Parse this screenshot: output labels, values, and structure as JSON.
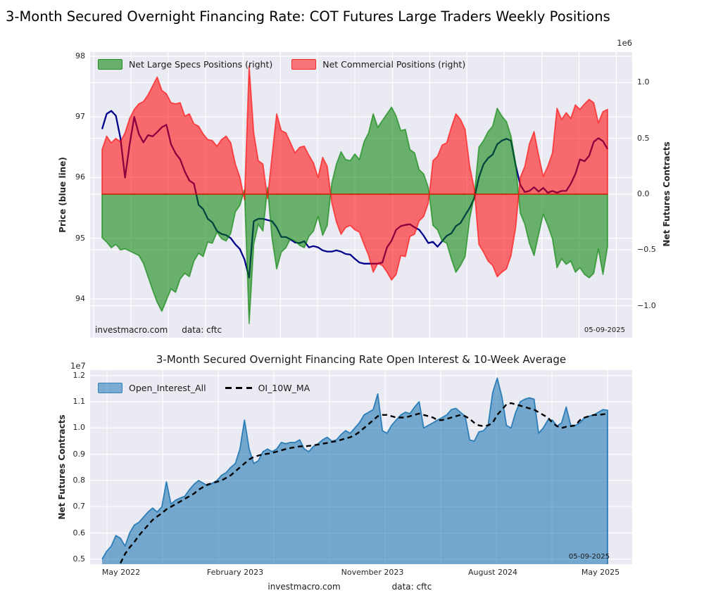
{
  "figure": {
    "title": "3-Month Secured Overnight Financing Rate: COT Futures Large Traders Weekly Positions",
    "background": "#ffffff",
    "plot_background": "#eaeaf2",
    "grid_color": "#ffffff"
  },
  "top_chart": {
    "legend": {
      "specs": "Net Large Specs Positions (right)",
      "commercials": "Net Commercial Positions (right)"
    },
    "ylabel_left": "Price (blue line)",
    "ylabel_right": "Net Futures Contracts",
    "offset_text": "1e6",
    "watermark": "investmacro.com",
    "source": "data: cftc",
    "date": "05-09-2025"
  },
  "bottom_chart": {
    "title": "3-Month Secured Overnight Financing Rate Open Interest & 10-Week Average",
    "legend": {
      "oi": "Open_Interest_All",
      "ma": "OI_10W_MA"
    },
    "ylabel": "Net Futures Contracts",
    "offset_text": "1e7",
    "date": "05-09-2025",
    "footer_watermark": "investmacro.com",
    "footer_source": "data: cftc"
  },
  "chart_data": [
    {
      "type": "line+area",
      "title": "3-Month Secured Overnight Financing Rate: COT Futures Large Traders Weekly Positions",
      "x_unit": "weeks from May 2022 to May 2025",
      "left_axis": {
        "label": "Price (blue line)",
        "range": [
          93.36,
          98.07
        ],
        "ticks": [
          98,
          97,
          96,
          95,
          94
        ],
        "tick_labels": [
          "98",
          "97",
          "96",
          "95",
          "94"
        ]
      },
      "right_axis": {
        "label": "Net Futures Contracts",
        "multiplier": "1e6",
        "range": [
          -1.287,
          1.274
        ],
        "ticks": [
          1.0,
          0.5,
          0.0,
          -0.5,
          -1.0
        ],
        "tick_labels": [
          "1.0",
          "0.5",
          "0.0",
          "−0.5",
          "−1.0"
        ]
      },
      "xgrid_pos": [
        -1.8,
        6.3,
        14.4,
        22.5,
        30.7,
        38.8,
        46.9,
        55.0,
        63.2,
        71.3,
        79.4,
        87.5,
        95.7,
        103.8,
        111.9
      ],
      "series": [
        {
          "name": "Price (blue line)",
          "style": "line",
          "axis": "left",
          "color": "#00008b",
          "values": [
            96.8,
            97.05,
            97.1,
            97.02,
            96.65,
            96.0,
            96.55,
            97.0,
            96.72,
            96.58,
            96.7,
            96.68,
            96.75,
            96.83,
            96.87,
            96.55,
            96.4,
            96.3,
            96.1,
            95.95,
            95.9,
            95.55,
            95.48,
            95.32,
            95.26,
            95.12,
            95.07,
            95.05,
            95.0,
            94.9,
            94.82,
            94.65,
            94.35,
            95.28,
            95.32,
            95.32,
            95.3,
            95.28,
            95.18,
            95.02,
            95.02,
            94.98,
            94.93,
            94.92,
            94.95,
            94.85,
            94.87,
            94.85,
            94.8,
            94.78,
            94.78,
            94.8,
            94.78,
            94.74,
            94.73,
            94.66,
            94.6,
            94.58,
            94.58,
            94.58,
            94.58,
            94.6,
            94.85,
            94.96,
            95.14,
            95.2,
            95.22,
            95.23,
            95.18,
            95.14,
            95.04,
            94.92,
            94.94,
            94.86,
            94.95,
            95.04,
            95.08,
            95.2,
            95.25,
            95.38,
            95.5,
            95.66,
            96.0,
            96.22,
            96.32,
            96.38,
            96.55,
            96.61,
            96.64,
            96.61,
            96.2,
            95.88,
            95.76,
            95.78,
            95.84,
            95.77,
            95.83,
            95.75,
            95.78,
            95.75,
            95.78,
            95.78,
            95.9,
            96.06,
            96.3,
            96.27,
            96.36,
            96.59,
            96.65,
            96.6,
            96.47
          ]
        },
        {
          "name": "Net Large Specs Positions (right)",
          "style": "area",
          "axis": "right",
          "color": "#008000",
          "values": [
            -0.39,
            -0.43,
            -0.48,
            -0.45,
            -0.5,
            -0.49,
            -0.51,
            -0.53,
            -0.55,
            -0.62,
            -0.74,
            -0.86,
            -0.97,
            -1.05,
            -0.95,
            -0.85,
            -0.88,
            -0.76,
            -0.71,
            -0.74,
            -0.6,
            -0.53,
            -0.56,
            -0.43,
            -0.44,
            -0.34,
            -0.4,
            -0.42,
            -0.35,
            -0.16,
            -0.1,
            0.04,
            -1.16,
            -0.45,
            -0.27,
            -0.33,
            0.06,
            -0.4,
            -0.67,
            -0.52,
            -0.48,
            -0.4,
            -0.42,
            -0.46,
            -0.48,
            -0.38,
            -0.33,
            -0.2,
            -0.37,
            -0.28,
            0.1,
            0.27,
            0.38,
            0.31,
            0.3,
            0.36,
            0.31,
            0.47,
            0.55,
            0.72,
            0.6,
            0.66,
            0.72,
            0.78,
            0.7,
            0.57,
            0.58,
            0.4,
            0.37,
            0.22,
            0.18,
            0.06,
            -0.28,
            -0.32,
            -0.42,
            -0.44,
            -0.58,
            -0.7,
            -0.64,
            -0.56,
            -0.22,
            -0.02,
            0.42,
            0.48,
            0.56,
            0.61,
            0.77,
            0.7,
            0.65,
            0.52,
            0.27,
            -0.17,
            -0.27,
            -0.44,
            -0.55,
            -0.36,
            -0.18,
            -0.28,
            -0.4,
            -0.66,
            -0.58,
            -0.63,
            -0.6,
            -0.7,
            -0.66,
            -0.72,
            -0.75,
            -0.71,
            -0.49,
            -0.72,
            -0.47
          ]
        },
        {
          "name": "Net Commercial Positions (right)",
          "style": "area",
          "axis": "right",
          "color": "#ff0000",
          "values": [
            0.4,
            0.52,
            0.46,
            0.5,
            0.47,
            0.55,
            0.68,
            0.76,
            0.81,
            0.83,
            0.89,
            0.97,
            1.05,
            0.93,
            0.9,
            0.82,
            0.81,
            0.82,
            0.7,
            0.72,
            0.63,
            0.61,
            0.54,
            0.49,
            0.48,
            0.43,
            0.49,
            0.52,
            0.46,
            0.27,
            0.15,
            -0.05,
            1.15,
            0.55,
            0.3,
            0.27,
            -0.04,
            0.35,
            0.72,
            0.57,
            0.55,
            0.46,
            0.37,
            0.42,
            0.43,
            0.35,
            0.28,
            0.15,
            0.33,
            0.25,
            -0.08,
            -0.25,
            -0.36,
            -0.3,
            -0.28,
            -0.32,
            -0.34,
            -0.45,
            -0.55,
            -0.7,
            -0.62,
            -0.64,
            -0.7,
            -0.77,
            -0.72,
            -0.55,
            -0.56,
            -0.38,
            -0.36,
            -0.24,
            -0.2,
            -0.08,
            0.3,
            0.34,
            0.44,
            0.46,
            0.6,
            0.72,
            0.67,
            0.58,
            0.25,
            0.05,
            -0.45,
            -0.52,
            -0.6,
            -0.64,
            -0.74,
            -0.7,
            -0.67,
            -0.55,
            -0.3,
            0.15,
            0.25,
            0.45,
            0.56,
            0.35,
            0.16,
            0.25,
            0.37,
            0.77,
            0.67,
            0.73,
            0.68,
            0.8,
            0.76,
            0.81,
            0.85,
            0.82,
            0.64,
            0.74,
            0.76
          ]
        }
      ],
      "annotations": [
        "investmacro.com",
        "data: cftc",
        "05-09-2025"
      ]
    },
    {
      "type": "area+line",
      "title": "3-Month Secured Overnight Financing Rate Open Interest & 10-Week Average",
      "y_axis": {
        "label": "Net Futures Contracts",
        "multiplier": "1e7",
        "range": [
          0.481,
          1.221
        ],
        "ticks": [
          1.2,
          1.1,
          1.0,
          0.9,
          0.8,
          0.7,
          0.6,
          0.5
        ],
        "tick_labels": [
          "1.2",
          "1.1",
          "1.0",
          "0.9",
          "0.8",
          "0.7",
          "0.6",
          "0.5"
        ]
      },
      "x_axis": {
        "tick_labels": [
          "May 2022",
          "February 2023",
          "November 2023",
          "August 2024",
          "May 2025"
        ],
        "tick_pos": [
          4.14,
          28.96,
          58.83,
          85.03,
          108.47
        ]
      },
      "xgrid_pos": [
        1.07,
        13.18,
        25.28,
        37.38,
        49.49,
        61.59,
        73.7,
        85.8,
        97.9,
        110.0
      ],
      "series": [
        {
          "name": "Open_Interest_All",
          "style": "area",
          "color": "#1f77b4",
          "values": [
            0.5,
            0.53,
            0.55,
            0.59,
            0.58,
            0.55,
            0.6,
            0.63,
            0.64,
            0.66,
            0.68,
            0.695,
            0.68,
            0.7,
            0.795,
            0.71,
            0.725,
            0.733,
            0.74,
            0.765,
            0.785,
            0.8,
            0.79,
            0.78,
            0.79,
            0.8,
            0.82,
            0.83,
            0.85,
            0.865,
            0.92,
            1.03,
            0.92,
            0.865,
            0.875,
            0.91,
            0.92,
            0.91,
            0.92,
            0.945,
            0.94,
            0.945,
            0.945,
            0.955,
            0.92,
            0.91,
            0.93,
            0.94,
            0.955,
            0.965,
            0.95,
            0.955,
            0.975,
            0.99,
            0.98,
            1.0,
            1.02,
            1.05,
            1.06,
            1.07,
            1.13,
            0.99,
            0.98,
            1.01,
            1.03,
            1.05,
            1.06,
            1.055,
            1.08,
            1.1,
            1.0,
            1.01,
            1.02,
            1.03,
            1.04,
            1.05,
            1.07,
            1.075,
            1.06,
            1.045,
            0.955,
            0.95,
            0.985,
            0.99,
            1.01,
            1.135,
            1.19,
            1.12,
            1.01,
            1.0,
            1.06,
            1.1,
            1.11,
            1.115,
            1.11,
            0.98,
            1.0,
            1.03,
            1.03,
            1.007,
            1.02,
            1.08,
            1.01,
            1.01,
            1.02,
            1.04,
            1.045,
            1.05,
            1.06,
            1.07,
            1.068
          ]
        },
        {
          "name": "OI_10W_MA",
          "style": "dashed-line",
          "color": "#000000",
          "values": [
            null,
            null,
            null,
            null,
            0.485,
            0.52,
            0.545,
            0.565,
            0.59,
            0.61,
            0.63,
            0.65,
            0.663,
            0.675,
            0.69,
            0.7,
            0.71,
            0.72,
            0.73,
            0.74,
            0.75,
            0.765,
            0.775,
            0.785,
            0.79,
            0.795,
            0.8,
            0.81,
            0.82,
            0.835,
            0.85,
            0.865,
            0.88,
            0.89,
            0.895,
            0.9,
            0.902,
            0.905,
            0.91,
            0.915,
            0.92,
            0.924,
            0.927,
            0.93,
            0.93,
            0.932,
            0.934,
            0.937,
            0.94,
            0.943,
            0.947,
            0.95,
            0.955,
            0.96,
            0.965,
            0.973,
            0.985,
            1.0,
            1.015,
            1.03,
            1.045,
            1.05,
            1.05,
            1.045,
            1.04,
            1.04,
            1.04,
            1.045,
            1.05,
            1.055,
            1.05,
            1.045,
            1.04,
            1.03,
            1.03,
            1.035,
            1.04,
            1.045,
            1.05,
            1.045,
            1.035,
            1.02,
            1.01,
            1.007,
            1.01,
            1.02,
            1.05,
            1.07,
            1.09,
            1.095,
            1.09,
            1.085,
            1.08,
            1.075,
            1.07,
            1.06,
            1.05,
            1.04,
            1.02,
            1.007,
            1.0,
            1.005,
            1.007,
            1.01,
            1.03,
            1.04,
            1.045,
            1.05,
            1.05,
            1.052,
            1.055
          ]
        }
      ],
      "annotations": [
        "05-09-2025"
      ]
    }
  ]
}
